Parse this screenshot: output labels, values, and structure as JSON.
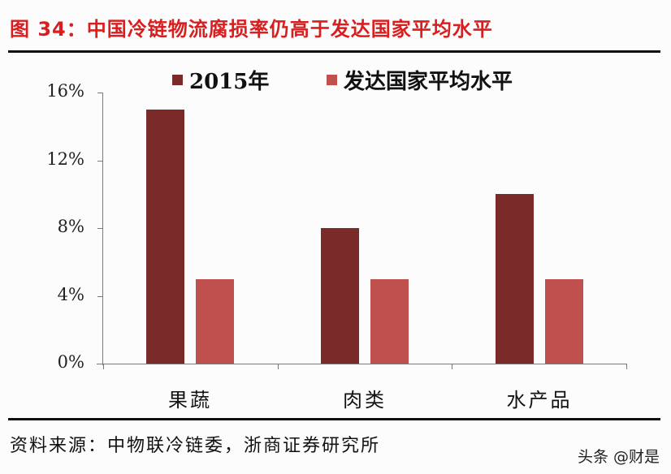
{
  "header": {
    "title": "图 34：中国冷链物流腐损率仍高于发达国家平均水平"
  },
  "colors": {
    "title": "#d81e1e",
    "series_2015": "#7b2a2a",
    "series_developed": "#c0504d"
  },
  "chart_data": {
    "type": "bar",
    "title": "图 34：中国冷链物流腐损率仍高于发达国家平均水平",
    "xlabel": "",
    "ylabel": "",
    "categories": [
      "果蔬",
      "肉类",
      "水产品"
    ],
    "series": [
      {
        "name": "2015年",
        "values": [
          15,
          8,
          10
        ],
        "color": "#7b2a2a"
      },
      {
        "name": "发达国家平均水平",
        "values": [
          5,
          5,
          5
        ],
        "color": "#c0504d"
      }
    ],
    "unit": "%",
    "ylim": [
      0,
      16
    ],
    "yticks": [
      "0%",
      "4%",
      "8%",
      "12%",
      "16%"
    ],
    "grid": false,
    "legend_position": "top"
  },
  "legend": {
    "items": [
      {
        "label": "2015年"
      },
      {
        "label": "发达国家平均水平"
      }
    ]
  },
  "footer": {
    "source": "资料来源：中物联冷链委，浙商证券研究所",
    "watermark": "头条 @财是"
  }
}
